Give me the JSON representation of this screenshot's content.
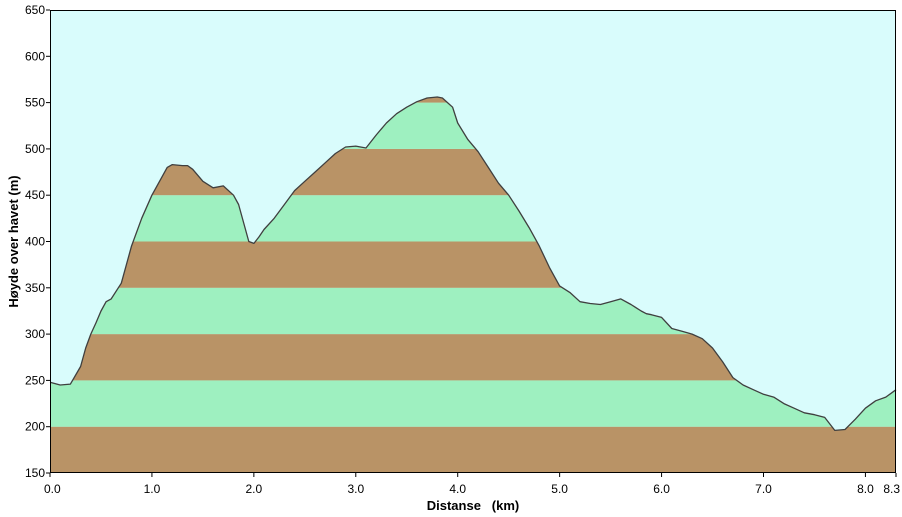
{
  "chart_data": {
    "type": "area",
    "title": "",
    "xlabel": "Distanse   (km)",
    "ylabel": "Høyde over havet (m)",
    "xlim": [
      0,
      8.3
    ],
    "ylim": [
      150,
      650
    ],
    "x_ticks": [
      "0.0",
      "1.0",
      "2.0",
      "3.0",
      "4.0",
      "5.0",
      "6.0",
      "7.0",
      "8.0",
      "8.3"
    ],
    "y_ticks": [
      "150",
      "200",
      "250",
      "300",
      "350",
      "400",
      "450",
      "500",
      "550",
      "600",
      "650"
    ],
    "band_step": 50,
    "grid": false,
    "legend": "none",
    "colors": {
      "background": "#d9fcfc",
      "band_low": "#b99366",
      "band_high": "#9ef0c0",
      "line": "#3f3f3f"
    },
    "series": [
      {
        "x": [
          0,
          0.1,
          0.2,
          0.3,
          0.35,
          0.4,
          0.45,
          0.5,
          0.55,
          0.6,
          0.7,
          0.8,
          0.9,
          1.0,
          1.1,
          1.15,
          1.2,
          1.3,
          1.35,
          1.4,
          1.5,
          1.6,
          1.7,
          1.8,
          1.85,
          1.9,
          1.95,
          2.0,
          2.05,
          2.1,
          2.2,
          2.3,
          2.4,
          2.5,
          2.6,
          2.7,
          2.8,
          2.9,
          3.0,
          3.1,
          3.2,
          3.3,
          3.4,
          3.5,
          3.6,
          3.7,
          3.8,
          3.85,
          3.9,
          3.95,
          4.0,
          4.1,
          4.2,
          4.3,
          4.4,
          4.5,
          4.6,
          4.7,
          4.8,
          4.9,
          5.0,
          5.1,
          5.2,
          5.3,
          5.4,
          5.5,
          5.6,
          5.7,
          5.8,
          5.85,
          5.9,
          6.0,
          6.1,
          6.2,
          6.3,
          6.4,
          6.5,
          6.6,
          6.7,
          6.8,
          6.9,
          7.0,
          7.1,
          7.2,
          7.3,
          7.4,
          7.5,
          7.6,
          7.7,
          7.8,
          7.9,
          8.0,
          8.1,
          8.2,
          8.3
        ],
        "y": [
          248,
          245,
          246,
          265,
          285,
          300,
          312,
          325,
          335,
          338,
          355,
          395,
          425,
          450,
          470,
          480,
          483,
          482,
          482,
          478,
          465,
          458,
          460,
          450,
          440,
          420,
          400,
          398,
          405,
          413,
          425,
          440,
          455,
          465,
          475,
          485,
          495,
          502,
          503,
          501,
          515,
          528,
          538,
          545,
          551,
          555,
          556,
          555,
          550,
          545,
          528,
          510,
          497,
          480,
          463,
          450,
          433,
          415,
          395,
          372,
          352,
          345,
          335,
          333,
          332,
          335,
          338,
          332,
          325,
          322,
          321,
          318,
          306,
          303,
          300,
          295,
          285,
          270,
          253,
          245,
          240,
          235,
          232,
          225,
          220,
          215,
          213,
          210,
          196,
          197,
          208,
          220,
          228,
          232,
          240
        ]
      }
    ]
  }
}
